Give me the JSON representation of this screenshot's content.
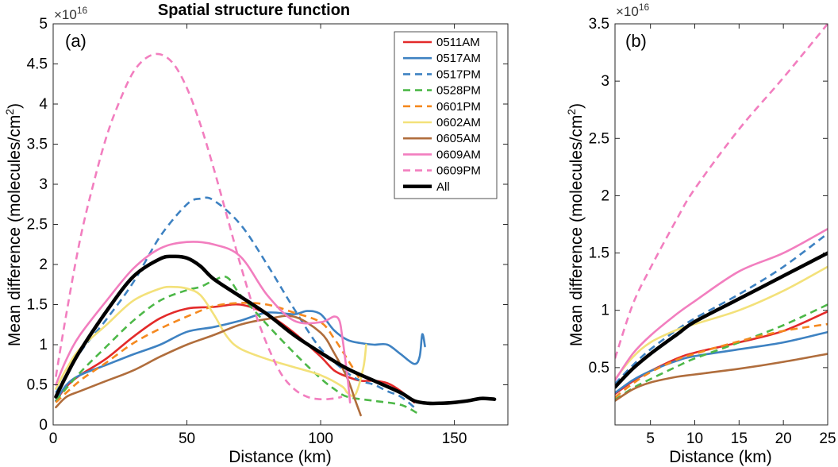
{
  "chart_data": [
    {
      "panel": "a",
      "type": "line",
      "title": "Spatial structure function",
      "panel_label": "(a)",
      "xlabel": "Distance (km)",
      "ylabel": "Mean difference (molecules/cm²)",
      "y_multiplier_label": "×10",
      "y_multiplier_exp": "16",
      "xlim": [
        0,
        170
      ],
      "ylim": [
        0,
        5
      ],
      "x_ticks": [
        0,
        50,
        100,
        150
      ],
      "x_tick_labels": [
        "0",
        "50",
        "100",
        "150"
      ],
      "y_ticks": [
        0,
        0.5,
        1,
        1.5,
        2,
        2.5,
        3,
        3.5,
        4,
        4.5,
        5
      ],
      "y_tick_labels": [
        "0",
        "0.5",
        "1",
        "1.5",
        "2",
        "2.5",
        "3",
        "3.5",
        "4",
        "4.5",
        "5"
      ],
      "legend": {
        "position": "top-right",
        "entries": [
          "0511AM",
          "0517AM",
          "0517PM",
          "0528PM",
          "0601PM",
          "0602AM",
          "0605AM",
          "0609AM",
          "0609PM",
          "All"
        ]
      },
      "series": [
        {
          "name": "0511AM",
          "color": "#e32a2a",
          "dash": "solid",
          "width": "normal",
          "x": [
            1,
            5,
            10,
            20,
            30,
            40,
            50,
            60,
            70,
            80,
            90,
            100,
            105,
            110,
            115,
            120,
            125,
            130,
            135
          ],
          "y": [
            0.3,
            0.48,
            0.62,
            0.83,
            1.1,
            1.33,
            1.45,
            1.47,
            1.5,
            1.38,
            1.15,
            0.85,
            0.68,
            0.6,
            0.55,
            0.55,
            0.52,
            0.42,
            0.28
          ]
        },
        {
          "name": "0517AM",
          "color": "#3e82c2",
          "dash": "solid",
          "width": "normal",
          "x": [
            1,
            5,
            10,
            20,
            30,
            40,
            50,
            60,
            70,
            80,
            90,
            95,
            100,
            105,
            110,
            115,
            120,
            125,
            130,
            135,
            137,
            138,
            139
          ],
          "y": [
            0.3,
            0.5,
            0.62,
            0.75,
            0.88,
            1.0,
            1.16,
            1.22,
            1.3,
            1.4,
            1.38,
            1.42,
            1.38,
            1.18,
            1.06,
            1.02,
            1.0,
            1.0,
            0.88,
            0.76,
            0.85,
            1.13,
            0.98
          ]
        },
        {
          "name": "0517PM",
          "color": "#3e82c2",
          "dash": "dashed",
          "width": "normal",
          "x": [
            1,
            10,
            20,
            30,
            40,
            50,
            55,
            60,
            70,
            80,
            90,
            100,
            110,
            115,
            120,
            125,
            130,
            135
          ],
          "y": [
            0.4,
            0.9,
            1.32,
            1.78,
            2.35,
            2.75,
            2.82,
            2.8,
            2.5,
            2.0,
            1.45,
            0.95,
            0.65,
            0.55,
            0.5,
            0.42,
            0.35,
            0.22
          ]
        },
        {
          "name": "0528PM",
          "color": "#4db848",
          "dash": "dashed",
          "width": "normal",
          "x": [
            1,
            10,
            20,
            30,
            40,
            50,
            55,
            60,
            65,
            70,
            80,
            90,
            100,
            105,
            110,
            120,
            130,
            136
          ],
          "y": [
            0.3,
            0.65,
            0.98,
            1.3,
            1.55,
            1.68,
            1.72,
            1.8,
            1.84,
            1.62,
            1.25,
            0.9,
            0.58,
            0.45,
            0.35,
            0.3,
            0.25,
            0.15
          ]
        },
        {
          "name": "0601PM",
          "color": "#f5891f",
          "dash": "dashed",
          "width": "normal",
          "x": [
            1,
            10,
            20,
            30,
            40,
            50,
            60,
            70,
            80,
            90,
            100,
            105,
            110,
            115
          ],
          "y": [
            0.28,
            0.55,
            0.78,
            1.02,
            1.2,
            1.35,
            1.48,
            1.52,
            1.5,
            1.4,
            1.28,
            1.08,
            0.82,
            0.55
          ]
        },
        {
          "name": "0602AM",
          "color": "#f3e17a",
          "dash": "solid",
          "width": "normal",
          "x": [
            1,
            5,
            10,
            20,
            30,
            40,
            45,
            50,
            55,
            60,
            65,
            70,
            80,
            90,
            100,
            108,
            110,
            113,
            116,
            117
          ],
          "y": [
            0.45,
            0.7,
            0.95,
            1.25,
            1.55,
            1.7,
            1.72,
            1.7,
            1.62,
            1.38,
            1.1,
            0.95,
            0.82,
            0.72,
            0.62,
            0.48,
            0.4,
            0.38,
            0.72,
            1.0
          ]
        },
        {
          "name": "0605AM",
          "color": "#b06d3c",
          "dash": "solid",
          "width": "normal",
          "x": [
            1,
            5,
            10,
            20,
            30,
            40,
            50,
            60,
            70,
            80,
            90,
            100,
            105,
            110,
            113,
            115
          ],
          "y": [
            0.22,
            0.35,
            0.42,
            0.55,
            0.68,
            0.85,
            1.0,
            1.12,
            1.25,
            1.32,
            1.35,
            1.15,
            0.9,
            0.58,
            0.3,
            0.12
          ]
        },
        {
          "name": "0609AM",
          "color": "#f27ebf",
          "dash": "solid",
          "width": "normal",
          "x": [
            1,
            5,
            10,
            20,
            30,
            40,
            50,
            60,
            70,
            80,
            90,
            100,
            105,
            107,
            108,
            110,
            111
          ],
          "y": [
            0.5,
            0.82,
            1.12,
            1.55,
            1.95,
            2.2,
            2.28,
            2.25,
            2.1,
            1.62,
            1.3,
            1.28,
            1.35,
            1.3,
            1.12,
            0.6,
            0.28
          ]
        },
        {
          "name": "0609PM",
          "color": "#f27ebf",
          "dash": "dashed",
          "width": "normal",
          "x": [
            1,
            5,
            10,
            15,
            20,
            25,
            30,
            35,
            40,
            45,
            50,
            55,
            60,
            65,
            70,
            75,
            80,
            85,
            90,
            95,
            100,
            105,
            108
          ],
          "y": [
            0.6,
            1.4,
            2.3,
            3.0,
            3.6,
            4.05,
            4.4,
            4.58,
            4.62,
            4.5,
            4.2,
            3.75,
            3.2,
            2.6,
            2.0,
            1.45,
            1.0,
            0.65,
            0.45,
            0.35,
            0.32,
            0.33,
            0.35
          ]
        },
        {
          "name": "All",
          "color": "#000000",
          "dash": "solid",
          "width": "thick",
          "x": [
            1,
            5,
            10,
            20,
            30,
            40,
            45,
            50,
            55,
            60,
            70,
            80,
            90,
            100,
            110,
            120,
            130,
            135,
            140,
            145,
            150,
            155,
            160,
            165
          ],
          "y": [
            0.35,
            0.62,
            0.92,
            1.42,
            1.85,
            2.07,
            2.1,
            2.08,
            1.98,
            1.82,
            1.6,
            1.38,
            1.12,
            0.9,
            0.7,
            0.55,
            0.4,
            0.3,
            0.27,
            0.27,
            0.28,
            0.3,
            0.33,
            0.32
          ]
        }
      ]
    },
    {
      "panel": "b",
      "type": "line",
      "panel_label": "(b)",
      "xlabel": "Distance (km)",
      "ylabel": "Mean difference (molecules/cm²)",
      "y_multiplier_label": "×10",
      "y_multiplier_exp": "16",
      "xlim": [
        1,
        25
      ],
      "ylim": [
        0,
        3.5
      ],
      "x_ticks": [
        5,
        10,
        15,
        20,
        25
      ],
      "x_tick_labels": [
        "5",
        "10",
        "15",
        "20",
        "25"
      ],
      "y_ticks": [
        0.5,
        1,
        1.5,
        2,
        2.5,
        3,
        3.5
      ],
      "y_tick_labels": [
        "0.5",
        "1",
        "1.5",
        "2",
        "2.5",
        "3",
        "3.5"
      ],
      "series": [
        {
          "name": "0511AM",
          "color": "#e32a2a",
          "dash": "solid",
          "width": "normal",
          "x": [
            1,
            3,
            5,
            8,
            10,
            15,
            20,
            25
          ],
          "y": [
            0.27,
            0.38,
            0.47,
            0.58,
            0.63,
            0.72,
            0.82,
            0.99
          ]
        },
        {
          "name": "0517AM",
          "color": "#3e82c2",
          "dash": "solid",
          "width": "normal",
          "x": [
            1,
            3,
            5,
            8,
            10,
            15,
            20,
            25
          ],
          "y": [
            0.28,
            0.39,
            0.47,
            0.56,
            0.6,
            0.66,
            0.72,
            0.81
          ]
        },
        {
          "name": "0517PM",
          "color": "#3e82c2",
          "dash": "dashed",
          "width": "normal",
          "x": [
            1,
            3,
            5,
            8,
            10,
            15,
            20,
            25
          ],
          "y": [
            0.36,
            0.52,
            0.66,
            0.83,
            0.93,
            1.14,
            1.38,
            1.67
          ]
        },
        {
          "name": "0528PM",
          "color": "#4db848",
          "dash": "dashed",
          "width": "normal",
          "x": [
            1,
            3,
            5,
            8,
            10,
            15,
            20,
            25
          ],
          "y": [
            0.22,
            0.32,
            0.4,
            0.51,
            0.58,
            0.72,
            0.87,
            1.05
          ]
        },
        {
          "name": "0601PM",
          "color": "#f5891f",
          "dash": "dashed",
          "width": "normal",
          "x": [
            1,
            3,
            5,
            8,
            10,
            15,
            20,
            25
          ],
          "y": [
            0.24,
            0.36,
            0.46,
            0.57,
            0.62,
            0.73,
            0.82,
            0.88
          ]
        },
        {
          "name": "0602AM",
          "color": "#f3e17a",
          "dash": "solid",
          "width": "normal",
          "x": [
            1,
            3,
            5,
            8,
            10,
            15,
            20,
            25
          ],
          "y": [
            0.4,
            0.59,
            0.72,
            0.83,
            0.88,
            1.0,
            1.17,
            1.38
          ]
        },
        {
          "name": "0605AM",
          "color": "#b06d3c",
          "dash": "solid",
          "width": "normal",
          "x": [
            1,
            3,
            5,
            8,
            10,
            15,
            20,
            25
          ],
          "y": [
            0.21,
            0.31,
            0.37,
            0.42,
            0.44,
            0.49,
            0.55,
            0.62
          ]
        },
        {
          "name": "0609AM",
          "color": "#f27ebf",
          "dash": "solid",
          "width": "normal",
          "x": [
            1,
            3,
            5,
            8,
            10,
            15,
            20,
            25
          ],
          "y": [
            0.39,
            0.62,
            0.78,
            0.97,
            1.08,
            1.34,
            1.5,
            1.71
          ]
        },
        {
          "name": "0609PM",
          "color": "#f27ebf",
          "dash": "dashed",
          "width": "normal",
          "x": [
            1,
            3,
            5,
            8,
            10,
            15,
            20,
            25
          ],
          "y": [
            0.58,
            1.05,
            1.37,
            1.8,
            2.06,
            2.58,
            3.03,
            3.5
          ]
        },
        {
          "name": "All",
          "color": "#000000",
          "dash": "solid",
          "width": "thick",
          "x": [
            1,
            3,
            5,
            8,
            10,
            15,
            20,
            25
          ],
          "y": [
            0.33,
            0.49,
            0.62,
            0.79,
            0.9,
            1.1,
            1.3,
            1.5
          ]
        }
      ]
    }
  ]
}
